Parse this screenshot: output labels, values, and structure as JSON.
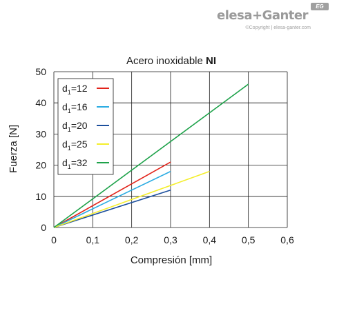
{
  "brand": {
    "name": "elesa+Ganter",
    "badge": "EG",
    "copyright": "©Copyright | elesa-ganter.com"
  },
  "chart_data": {
    "type": "line",
    "title_prefix": "Acero inoxidable ",
    "title_bold": "NI",
    "xlabel": "Compresión [mm]",
    "ylabel": "Fuerza [N]",
    "xlim": [
      0,
      0.6
    ],
    "ylim": [
      0,
      50
    ],
    "x_ticks": [
      "0",
      "0,1",
      "0,2",
      "0,3",
      "0,4",
      "0,5",
      "0,6"
    ],
    "y_ticks": [
      "0",
      "10",
      "20",
      "30",
      "40",
      "50"
    ],
    "grid": true,
    "legend_position": "top-left",
    "series": [
      {
        "label_main": "d",
        "label_sub": "1",
        "label_rest": "=12",
        "color": "#e2231a",
        "x": [
          0,
          0.3
        ],
        "y": [
          0,
          21
        ]
      },
      {
        "label_main": "d",
        "label_sub": "1",
        "label_rest": "=16",
        "color": "#29abe2",
        "x": [
          0,
          0.3
        ],
        "y": [
          0,
          18
        ]
      },
      {
        "label_main": "d",
        "label_sub": "1",
        "label_rest": "=20",
        "color": "#1c4f9c",
        "x": [
          0,
          0.3
        ],
        "y": [
          0,
          12
        ]
      },
      {
        "label_main": "d",
        "label_sub": "1",
        "label_rest": "=25",
        "color": "#f4ee2a",
        "x": [
          0,
          0.4
        ],
        "y": [
          0,
          18
        ]
      },
      {
        "label_main": "d",
        "label_sub": "1",
        "label_rest": "=32",
        "color": "#1ea24a",
        "x": [
          0,
          0.5
        ],
        "y": [
          0,
          46
        ]
      }
    ]
  }
}
